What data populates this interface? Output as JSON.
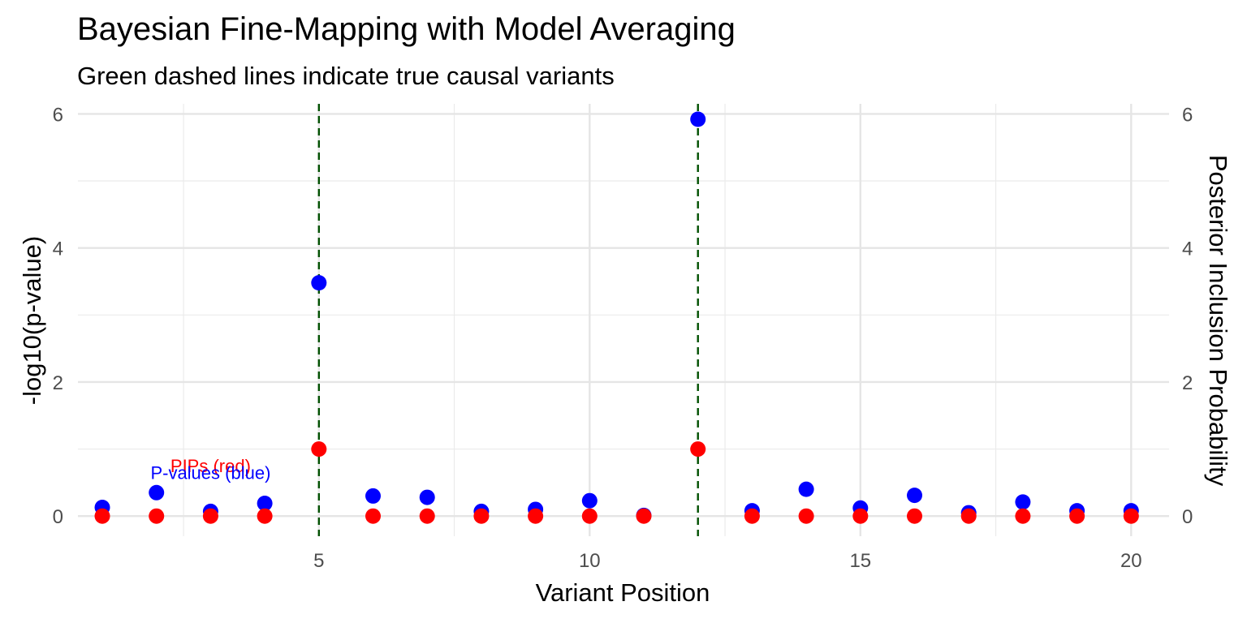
{
  "chart_data": {
    "type": "scatter",
    "title": "Bayesian Fine-Mapping with Model Averaging",
    "subtitle": "Green dashed lines indicate true causal variants",
    "xlabel": "Variant Position",
    "ylabel": "-log10(p-value)",
    "ylabel_right": "Posterior Inclusion Probability",
    "xlim": [
      0.55,
      20.7
    ],
    "ylim": [
      -0.3,
      6.15
    ],
    "x_ticks": [
      5,
      10,
      15,
      20
    ],
    "x_minor_ticks": [
      2.5,
      7.5,
      12.5,
      17.5
    ],
    "y_ticks": [
      0,
      2,
      4,
      6
    ],
    "y_minor_ticks": [
      1,
      3,
      5
    ],
    "grid": true,
    "causal_variants": [
      5,
      12
    ],
    "annotations": [
      {
        "text": "PIPs (red)",
        "x": 3,
        "y": 0.75,
        "color": "#ff0000"
      },
      {
        "text": "P-values (blue)",
        "x": 3,
        "y": 0.65,
        "color": "#0000ff"
      }
    ],
    "series": [
      {
        "color": "#0000ff",
        "x": [
          1,
          2,
          3,
          4,
          5,
          6,
          7,
          8,
          9,
          10,
          11,
          12,
          13,
          14,
          15,
          16,
          17,
          18,
          19,
          20
        ],
        "y": [
          0.13,
          0.35,
          0.07,
          0.19,
          3.48,
          0.3,
          0.28,
          0.07,
          0.1,
          0.23,
          0.01,
          5.92,
          0.08,
          0.4,
          0.12,
          0.31,
          0.05,
          0.21,
          0.08,
          0.08
        ]
      },
      {
        "color": "#ff0000",
        "x": [
          1,
          2,
          3,
          4,
          5,
          6,
          7,
          8,
          9,
          10,
          11,
          12,
          13,
          14,
          15,
          16,
          17,
          18,
          19,
          20
        ],
        "y": [
          0,
          0,
          0,
          0,
          1,
          0,
          0,
          0,
          0,
          0,
          0,
          1,
          0,
          0,
          0,
          0,
          0,
          0,
          0,
          0
        ]
      }
    ]
  }
}
